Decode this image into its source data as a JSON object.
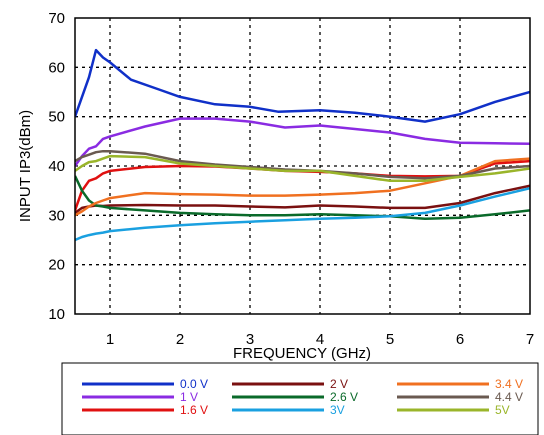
{
  "chart_data": {
    "type": "line",
    "title": "",
    "xlabel": "FREQUENCY (GHz)",
    "ylabel": "INPUT IP3(dBm)",
    "xlim": [
      0.5,
      7
    ],
    "ylim": [
      10,
      70
    ],
    "xticks": [
      1,
      2,
      3,
      4,
      5,
      6,
      7
    ],
    "yticks": [
      10,
      20,
      30,
      40,
      50,
      60,
      70
    ],
    "grid": true,
    "legend_position": "bottom",
    "series": [
      {
        "name": "0.0 V",
        "color": "#1030c8",
        "x": [
          0.5,
          0.6,
          0.7,
          0.8,
          0.9,
          1.0,
          1.3,
          1.7,
          2.0,
          2.5,
          3.0,
          3.4,
          3.8,
          4.0,
          4.5,
          5.0,
          5.5,
          6.0,
          6.5,
          7.0
        ],
        "y": [
          50,
          54,
          58,
          63.5,
          62,
          61,
          57.5,
          55.5,
          54,
          52.5,
          52,
          51,
          51.2,
          51.3,
          50.8,
          50,
          49,
          50.5,
          53,
          55
        ]
      },
      {
        "name": "1 V",
        "color": "#8a2be2",
        "x": [
          0.5,
          0.6,
          0.7,
          0.8,
          0.9,
          1.0,
          1.5,
          2.0,
          2.5,
          3.0,
          3.5,
          4.0,
          4.5,
          5.0,
          5.5,
          6.0,
          6.5,
          7.0
        ],
        "y": [
          40,
          42,
          43.5,
          44,
          45.5,
          46,
          48,
          49.6,
          49.6,
          49,
          47.8,
          48.2,
          47.5,
          46.8,
          45.5,
          44.7,
          44.6,
          44.5
        ]
      },
      {
        "name": "1.6 V",
        "color": "#e01010",
        "x": [
          0.5,
          0.6,
          0.7,
          0.8,
          0.9,
          1.0,
          1.5,
          2.0,
          2.5,
          3.0,
          3.5,
          4.0,
          4.5,
          5.0,
          5.5,
          6.0,
          6.5,
          7.0
        ],
        "y": [
          31,
          35,
          37,
          37.5,
          38.5,
          39,
          39.8,
          40,
          39.9,
          39.5,
          39,
          38.8,
          38.5,
          38,
          37.9,
          38,
          40.5,
          41
        ]
      },
      {
        "name": "2 V",
        "color": "#7a1010",
        "x": [
          0.5,
          0.6,
          0.7,
          0.8,
          0.9,
          1.0,
          1.5,
          2.0,
          2.5,
          3.0,
          3.5,
          4.0,
          4.5,
          5.0,
          5.5,
          6.0,
          6.5,
          7.0
        ],
        "y": [
          30.5,
          31.5,
          31.8,
          32,
          31.9,
          32,
          32.1,
          32,
          32,
          31.8,
          31.6,
          32,
          31.8,
          31.5,
          31.5,
          32.5,
          34.5,
          36
        ]
      },
      {
        "name": "2.6 V",
        "color": "#0a6a2a",
        "x": [
          0.5,
          0.6,
          0.7,
          0.8,
          0.9,
          1.0,
          1.5,
          2.0,
          2.5,
          3.0,
          3.5,
          4.0,
          4.5,
          5.0,
          5.5,
          6.0,
          6.5,
          7.0
        ],
        "y": [
          38,
          35,
          33,
          32,
          31.8,
          31.5,
          31,
          30.5,
          30.2,
          30,
          30,
          30.2,
          30,
          29.8,
          29.3,
          29.5,
          30.2,
          31
        ]
      },
      {
        "name": "3V",
        "color": "#1aa0e0",
        "x": [
          0.5,
          0.6,
          0.7,
          0.8,
          0.9,
          1.0,
          1.5,
          2.0,
          2.5,
          3.0,
          3.5,
          4.0,
          4.5,
          5.0,
          5.5,
          6.0,
          6.5,
          7.0
        ],
        "y": [
          25,
          25.6,
          26,
          26.3,
          26.5,
          26.8,
          27.5,
          28,
          28.4,
          28.7,
          29,
          29.3,
          29.5,
          29.8,
          30.5,
          32,
          33.8,
          35.5
        ]
      },
      {
        "name": "3.4 V",
        "color": "#f07020",
        "x": [
          0.5,
          0.6,
          0.7,
          0.8,
          0.9,
          1.0,
          1.5,
          2.0,
          2.5,
          3.0,
          3.5,
          4.0,
          4.5,
          5.0,
          5.5,
          6.0,
          6.5,
          7.0
        ],
        "y": [
          30,
          30.8,
          31.8,
          32.5,
          33,
          33.5,
          34.5,
          34.3,
          34.2,
          34,
          34,
          34.2,
          34.5,
          35,
          36.5,
          38,
          41,
          41.5
        ]
      },
      {
        "name": "4.4 V",
        "color": "#6a5a50",
        "x": [
          0.5,
          0.6,
          0.7,
          0.8,
          0.9,
          1.0,
          1.5,
          2.0,
          2.5,
          3.0,
          3.5,
          4.0,
          4.5,
          5.0,
          5.5,
          6.0,
          6.5,
          7.0
        ],
        "y": [
          41,
          41.8,
          42.3,
          42.8,
          43,
          43,
          42.5,
          41,
          40.3,
          39.8,
          39.3,
          39,
          38.5,
          37.8,
          37.5,
          38,
          39.5,
          40
        ]
      },
      {
        "name": "5V",
        "color": "#9ab52a",
        "x": [
          0.5,
          0.6,
          0.7,
          0.8,
          0.9,
          1.0,
          1.5,
          2.0,
          2.5,
          3.0,
          3.5,
          4.0,
          4.5,
          5.0,
          5.5,
          6.0,
          6.5,
          7.0
        ],
        "y": [
          39,
          40,
          40.8,
          41,
          41.5,
          42,
          41.8,
          40.5,
          40,
          39.5,
          39,
          39,
          38,
          37,
          37,
          37.8,
          38.5,
          39.5
        ]
      }
    ],
    "legend_order": [
      "0.0 V",
      "2 V",
      "3.4 V",
      "1 V",
      "2.6 V",
      "4.4 V",
      "1.6 V",
      "3V",
      "5V"
    ]
  }
}
